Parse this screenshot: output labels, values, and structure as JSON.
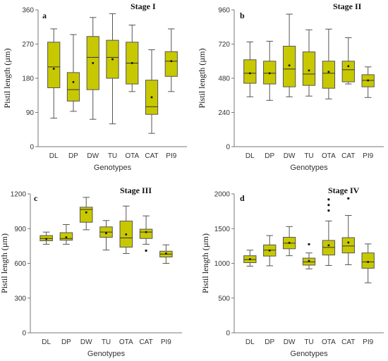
{
  "style": {
    "box_fill": "#c8c800",
    "box_stroke": "#555555",
    "axis_color": "#777777",
    "text_color": "#333333"
  },
  "chart_data": [
    {
      "type": "box",
      "panel_letter": "a",
      "title": "Stage I",
      "xlabel": "Genotypes",
      "ylabel": "Pistil length (µm)",
      "ylim": [
        0,
        360
      ],
      "yticks": [
        "0",
        "90",
        "180",
        "270",
        "360"
      ],
      "ytick_values": [
        0,
        90,
        180,
        270,
        360
      ],
      "categories": [
        "DL",
        "DP",
        "DW",
        "TU",
        "OTA",
        "CAT",
        "PI9"
      ],
      "boxes": [
        {
          "min": 75,
          "q1": 155,
          "median": 210,
          "q3": 275,
          "max": 310,
          "mean": 205,
          "outliers": []
        },
        {
          "min": 93,
          "q1": 120,
          "median": 150,
          "q3": 195,
          "max": 295,
          "mean": 170,
          "outliers": []
        },
        {
          "min": 72,
          "q1": 150,
          "median": 235,
          "q3": 290,
          "max": 340,
          "mean": 220,
          "outliers": []
        },
        {
          "min": 60,
          "q1": 180,
          "median": 235,
          "q3": 280,
          "max": 350,
          "mean": 230,
          "outliers": []
        },
        {
          "min": 145,
          "q1": 165,
          "median": 220,
          "q3": 275,
          "max": 320,
          "mean": 220,
          "outliers": []
        },
        {
          "min": 35,
          "q1": 85,
          "median": 105,
          "q3": 175,
          "max": 255,
          "mean": 130,
          "outliers": []
        },
        {
          "min": 145,
          "q1": 185,
          "median": 225,
          "q3": 250,
          "max": 310,
          "mean": 225,
          "outliers": []
        }
      ]
    },
    {
      "type": "box",
      "panel_letter": "b",
      "title": "Stage II",
      "xlabel": "Genotypes",
      "ylabel": "Pistil length (µm)",
      "ylim": [
        0,
        960
      ],
      "yticks": [
        "0",
        "240",
        "480",
        "720",
        "960"
      ],
      "ytick_values": [
        0,
        240,
        480,
        720,
        960
      ],
      "categories": [
        "DL",
        "DP",
        "DW",
        "TU",
        "OTA",
        "CAT",
        "PI9"
      ],
      "boxes": [
        {
          "min": 350,
          "q1": 445,
          "median": 515,
          "q3": 610,
          "max": 735,
          "mean": 515,
          "outliers": []
        },
        {
          "min": 325,
          "q1": 440,
          "median": 515,
          "q3": 600,
          "max": 740,
          "mean": 515,
          "outliers": []
        },
        {
          "min": 350,
          "q1": 420,
          "median": 545,
          "q3": 705,
          "max": 930,
          "mean": 570,
          "outliers": []
        },
        {
          "min": 355,
          "q1": 430,
          "median": 510,
          "q3": 665,
          "max": 820,
          "mean": 535,
          "outliers": []
        },
        {
          "min": 335,
          "q1": 410,
          "median": 515,
          "q3": 600,
          "max": 825,
          "mean": 525,
          "outliers": []
        },
        {
          "min": 440,
          "q1": 455,
          "median": 540,
          "q3": 600,
          "max": 765,
          "mean": 565,
          "outliers": []
        },
        {
          "min": 345,
          "q1": 420,
          "median": 465,
          "q3": 505,
          "max": 560,
          "mean": 465,
          "outliers": []
        }
      ]
    },
    {
      "type": "box",
      "panel_letter": "c",
      "title": "Stage III",
      "xlabel": "Genotypes",
      "ylabel": "Pistil length (µm)",
      "ylim": [
        0,
        1200
      ],
      "yticks": [
        "0",
        "300",
        "600",
        "900",
        "1200"
      ],
      "ytick_values": [
        0,
        300,
        600,
        900,
        1200
      ],
      "categories": [
        "DL",
        "DP",
        "DW",
        "TU",
        "OTA",
        "CAT",
        "PI9"
      ],
      "boxes": [
        {
          "min": 765,
          "q1": 795,
          "median": 815,
          "q3": 840,
          "max": 870,
          "mean": 810,
          "outliers": []
        },
        {
          "min": 765,
          "q1": 800,
          "median": 815,
          "q3": 865,
          "max": 935,
          "mean": 825,
          "outliers": []
        },
        {
          "min": 890,
          "q1": 955,
          "median": 1065,
          "q3": 1085,
          "max": 1170,
          "mean": 1040,
          "outliers": []
        },
        {
          "min": 715,
          "q1": 825,
          "median": 870,
          "q3": 915,
          "max": 970,
          "mean": 860,
          "outliers": []
        },
        {
          "min": 685,
          "q1": 740,
          "median": 820,
          "q3": 965,
          "max": 1095,
          "mean": 850,
          "outliers": []
        },
        {
          "min": 765,
          "q1": 815,
          "median": 870,
          "q3": 895,
          "max": 1010,
          "mean": 870,
          "outliers": [
            710
          ]
        },
        {
          "min": 600,
          "q1": 655,
          "median": 680,
          "q3": 705,
          "max": 760,
          "mean": 685,
          "outliers": []
        }
      ]
    },
    {
      "type": "box",
      "panel_letter": "d",
      "title": "Stage IV",
      "xlabel": "Genotypes",
      "ylabel": "Pistil length (µm)",
      "ylim": [
        0,
        2000
      ],
      "yticks": [
        "0",
        "500",
        "1000",
        "1500",
        "2000"
      ],
      "ytick_values": [
        0,
        500,
        1000,
        1500,
        2000
      ],
      "categories": [
        "DL",
        "DP",
        "DW",
        "TU",
        "OTA",
        "CAT",
        "PI9"
      ],
      "boxes": [
        {
          "min": 960,
          "q1": 1010,
          "median": 1055,
          "q3": 1110,
          "max": 1190,
          "mean": 1060,
          "outliers": []
        },
        {
          "min": 965,
          "q1": 1105,
          "median": 1190,
          "q3": 1265,
          "max": 1400,
          "mean": 1185,
          "outliers": []
        },
        {
          "min": 1110,
          "q1": 1210,
          "median": 1290,
          "q3": 1375,
          "max": 1530,
          "mean": 1295,
          "outliers": []
        },
        {
          "min": 920,
          "q1": 975,
          "median": 1020,
          "q3": 1075,
          "max": 1150,
          "mean": 1035,
          "outliers": [
            1275
          ]
        },
        {
          "min": 970,
          "q1": 1120,
          "median": 1230,
          "q3": 1330,
          "max": 1610,
          "mean": 1260,
          "outliers": [
            1760,
            1840,
            1920
          ]
        },
        {
          "min": 980,
          "q1": 1150,
          "median": 1250,
          "q3": 1370,
          "max": 1690,
          "mean": 1300,
          "outliers": [
            1935
          ]
        },
        {
          "min": 720,
          "q1": 930,
          "median": 1020,
          "q3": 1150,
          "max": 1280,
          "mean": 1020,
          "outliers": []
        }
      ]
    }
  ]
}
